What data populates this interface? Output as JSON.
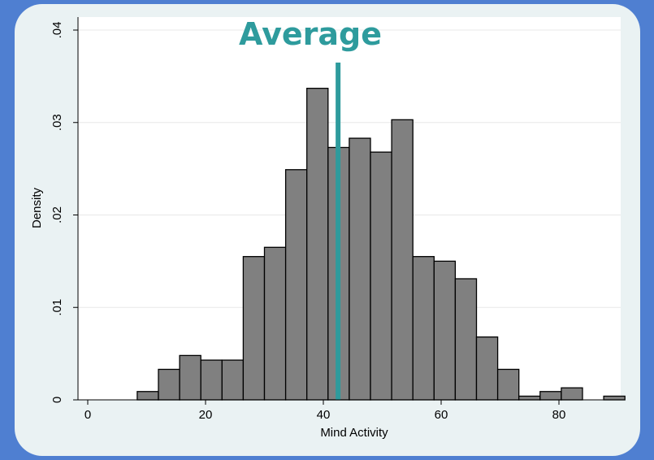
{
  "chart_data": {
    "type": "bar",
    "subtype": "histogram",
    "xlabel": "Mind Activity",
    "ylabel": "Density",
    "xlim": [
      0,
      90
    ],
    "ylim": [
      0,
      0.04
    ],
    "x_ticks": [
      0,
      20,
      40,
      60,
      80
    ],
    "x_tick_labels": [
      "0",
      "20",
      "40",
      "60",
      "80"
    ],
    "y_ticks": [
      0,
      0.01,
      0.02,
      0.03,
      0.04
    ],
    "y_tick_labels": [
      "0",
      ".01",
      ".02",
      ".03",
      ".04"
    ],
    "bin_width": 3.6,
    "bins": [
      {
        "start": 8.4,
        "density": 0.0009
      },
      {
        "start": 12.0,
        "density": 0.0033
      },
      {
        "start": 15.6,
        "density": 0.0048
      },
      {
        "start": 19.2,
        "density": 0.0043
      },
      {
        "start": 22.8,
        "density": 0.0043
      },
      {
        "start": 26.4,
        "density": 0.0155
      },
      {
        "start": 30.0,
        "density": 0.0165
      },
      {
        "start": 33.6,
        "density": 0.0249
      },
      {
        "start": 37.2,
        "density": 0.0337
      },
      {
        "start": 40.8,
        "density": 0.0273
      },
      {
        "start": 44.4,
        "density": 0.0283
      },
      {
        "start": 48.0,
        "density": 0.0268
      },
      {
        "start": 51.6,
        "density": 0.0303
      },
      {
        "start": 55.2,
        "density": 0.0155
      },
      {
        "start": 58.8,
        "density": 0.015
      },
      {
        "start": 62.4,
        "density": 0.0131
      },
      {
        "start": 66.0,
        "density": 0.0068
      },
      {
        "start": 69.6,
        "density": 0.0033
      },
      {
        "start": 73.2,
        "density": 0.0004
      },
      {
        "start": 76.8,
        "density": 0.0009
      },
      {
        "start": 80.4,
        "density": 0.0013
      },
      {
        "start": 84.0,
        "density": 0.0
      },
      {
        "start": 87.6,
        "density": 0.0004
      }
    ],
    "bar_color": "#808080",
    "grid": true,
    "average": {
      "label": "Average",
      "value": 42.5,
      "color": "#2E9B9D"
    }
  }
}
